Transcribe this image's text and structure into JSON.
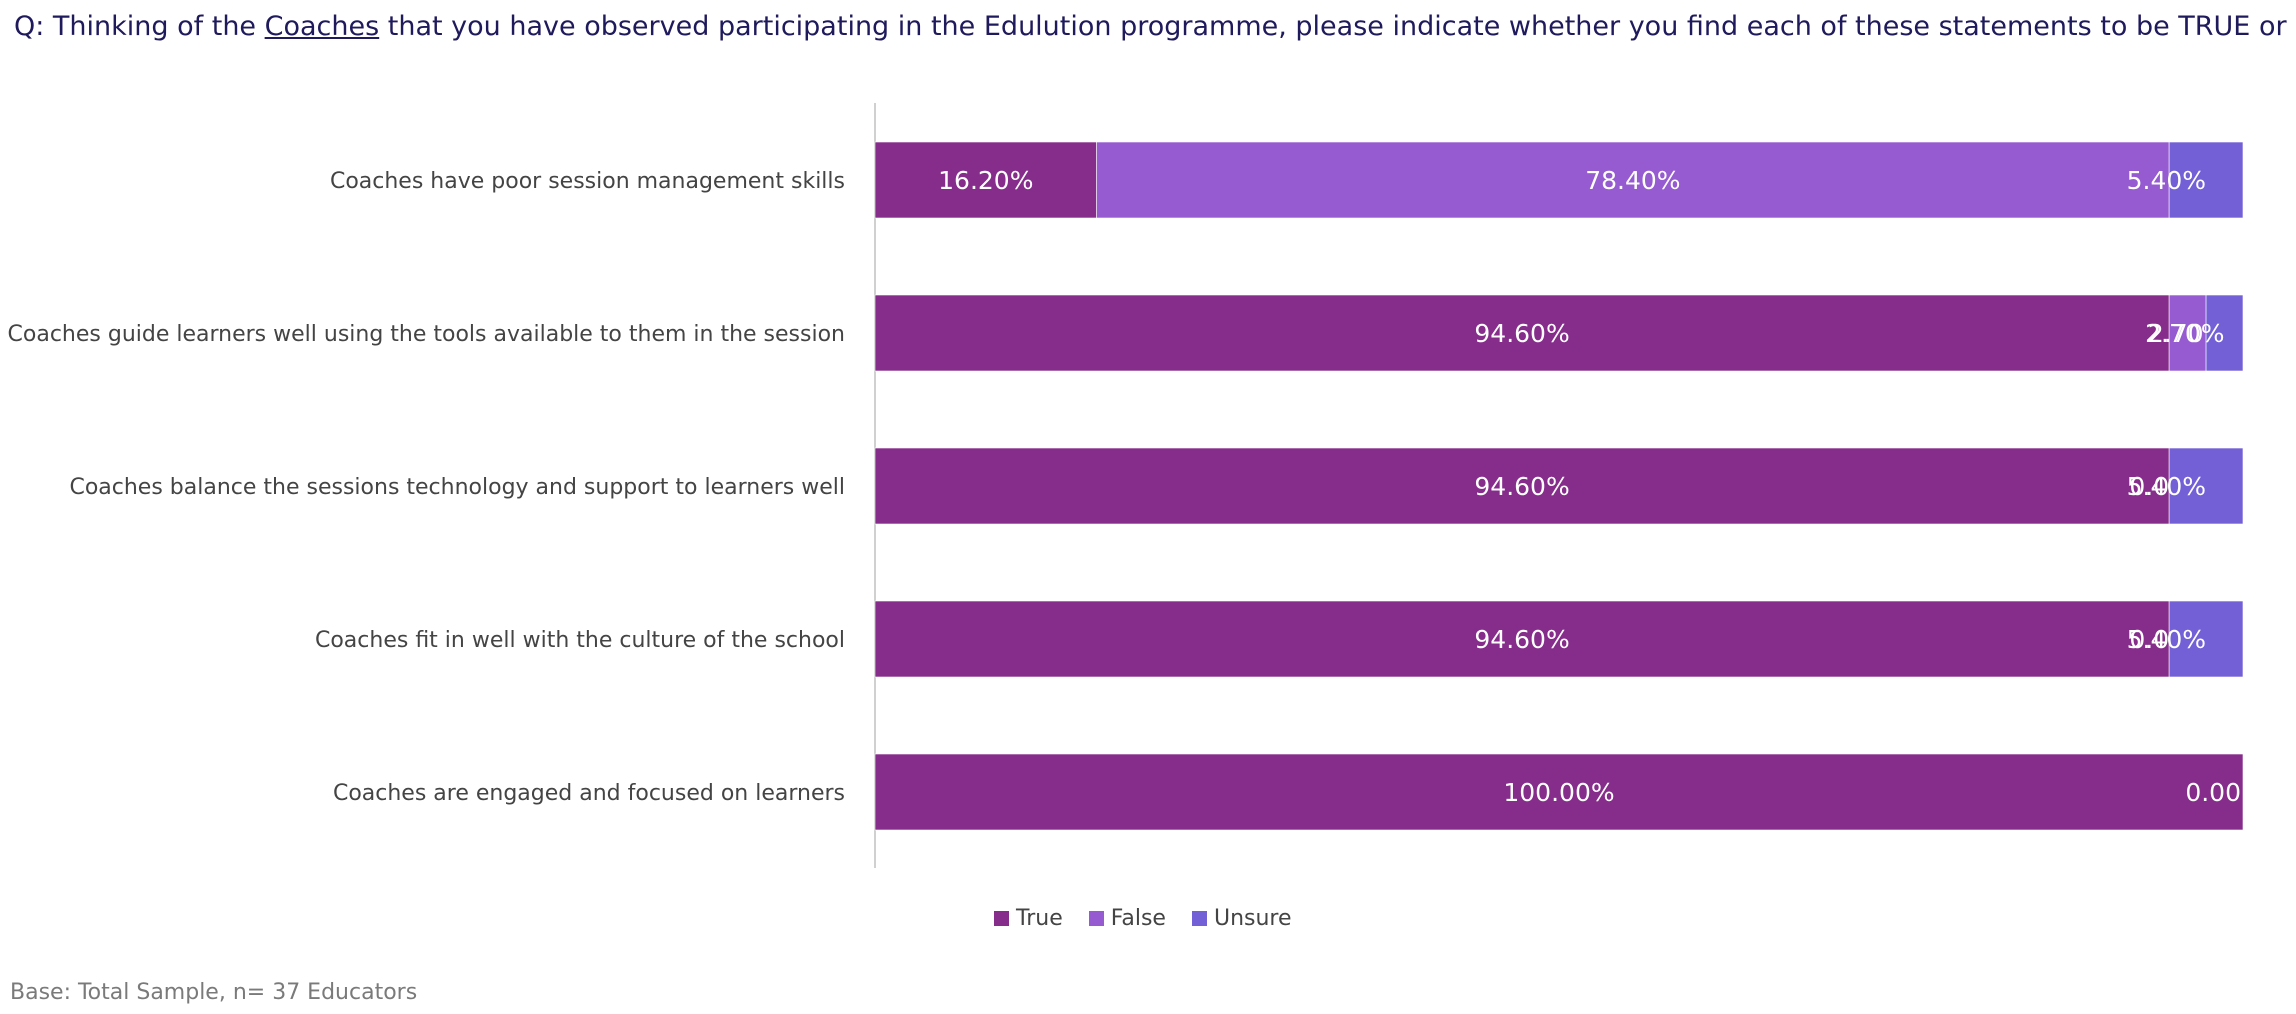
{
  "question": {
    "prefix": "Q: Thinking of the ",
    "emphasis": "Coaches",
    "suffix": " that you have observed participating in the Edulution programme, please indicate whether you find each of these statements to be TRUE or FALSE"
  },
  "footnote": "Base: Total Sample, n= 37 Educators",
  "colors": {
    "True": "#862d8c",
    "False": "#965bd0",
    "Unsure": "#7460d6"
  },
  "chart_data": {
    "type": "bar",
    "orientation": "horizontal",
    "stacked": true,
    "categories": [
      "Coaches have poor session management skills",
      "Coaches guide learners well using the tools available to them in the session",
      "Coaches balance the sessions technology and support to learners well",
      "Coaches fit in well with the culture of the school",
      "Coaches are engaged and focused on learners"
    ],
    "series": [
      {
        "name": "True",
        "values": [
          16.2,
          94.6,
          94.6,
          94.6,
          100.0
        ],
        "labels": [
          "16.20%",
          "94.60%",
          "94.60%",
          "94.60%",
          "100.00%"
        ]
      },
      {
        "name": "False",
        "values": [
          78.4,
          2.7,
          0.0,
          0.0,
          0.0
        ],
        "labels": [
          "78.40%",
          "2.70%",
          "0.00%",
          "0.00%",
          "0.00"
        ]
      },
      {
        "name": "Unsure",
        "values": [
          5.4,
          2.7,
          5.4,
          5.4,
          0.0
        ],
        "labels": [
          "5.40%",
          "2.70%",
          "5.40%",
          "5.40%",
          ""
        ]
      }
    ],
    "xlim": [
      0,
      100
    ],
    "grid": false,
    "legend_position": "bottom"
  }
}
